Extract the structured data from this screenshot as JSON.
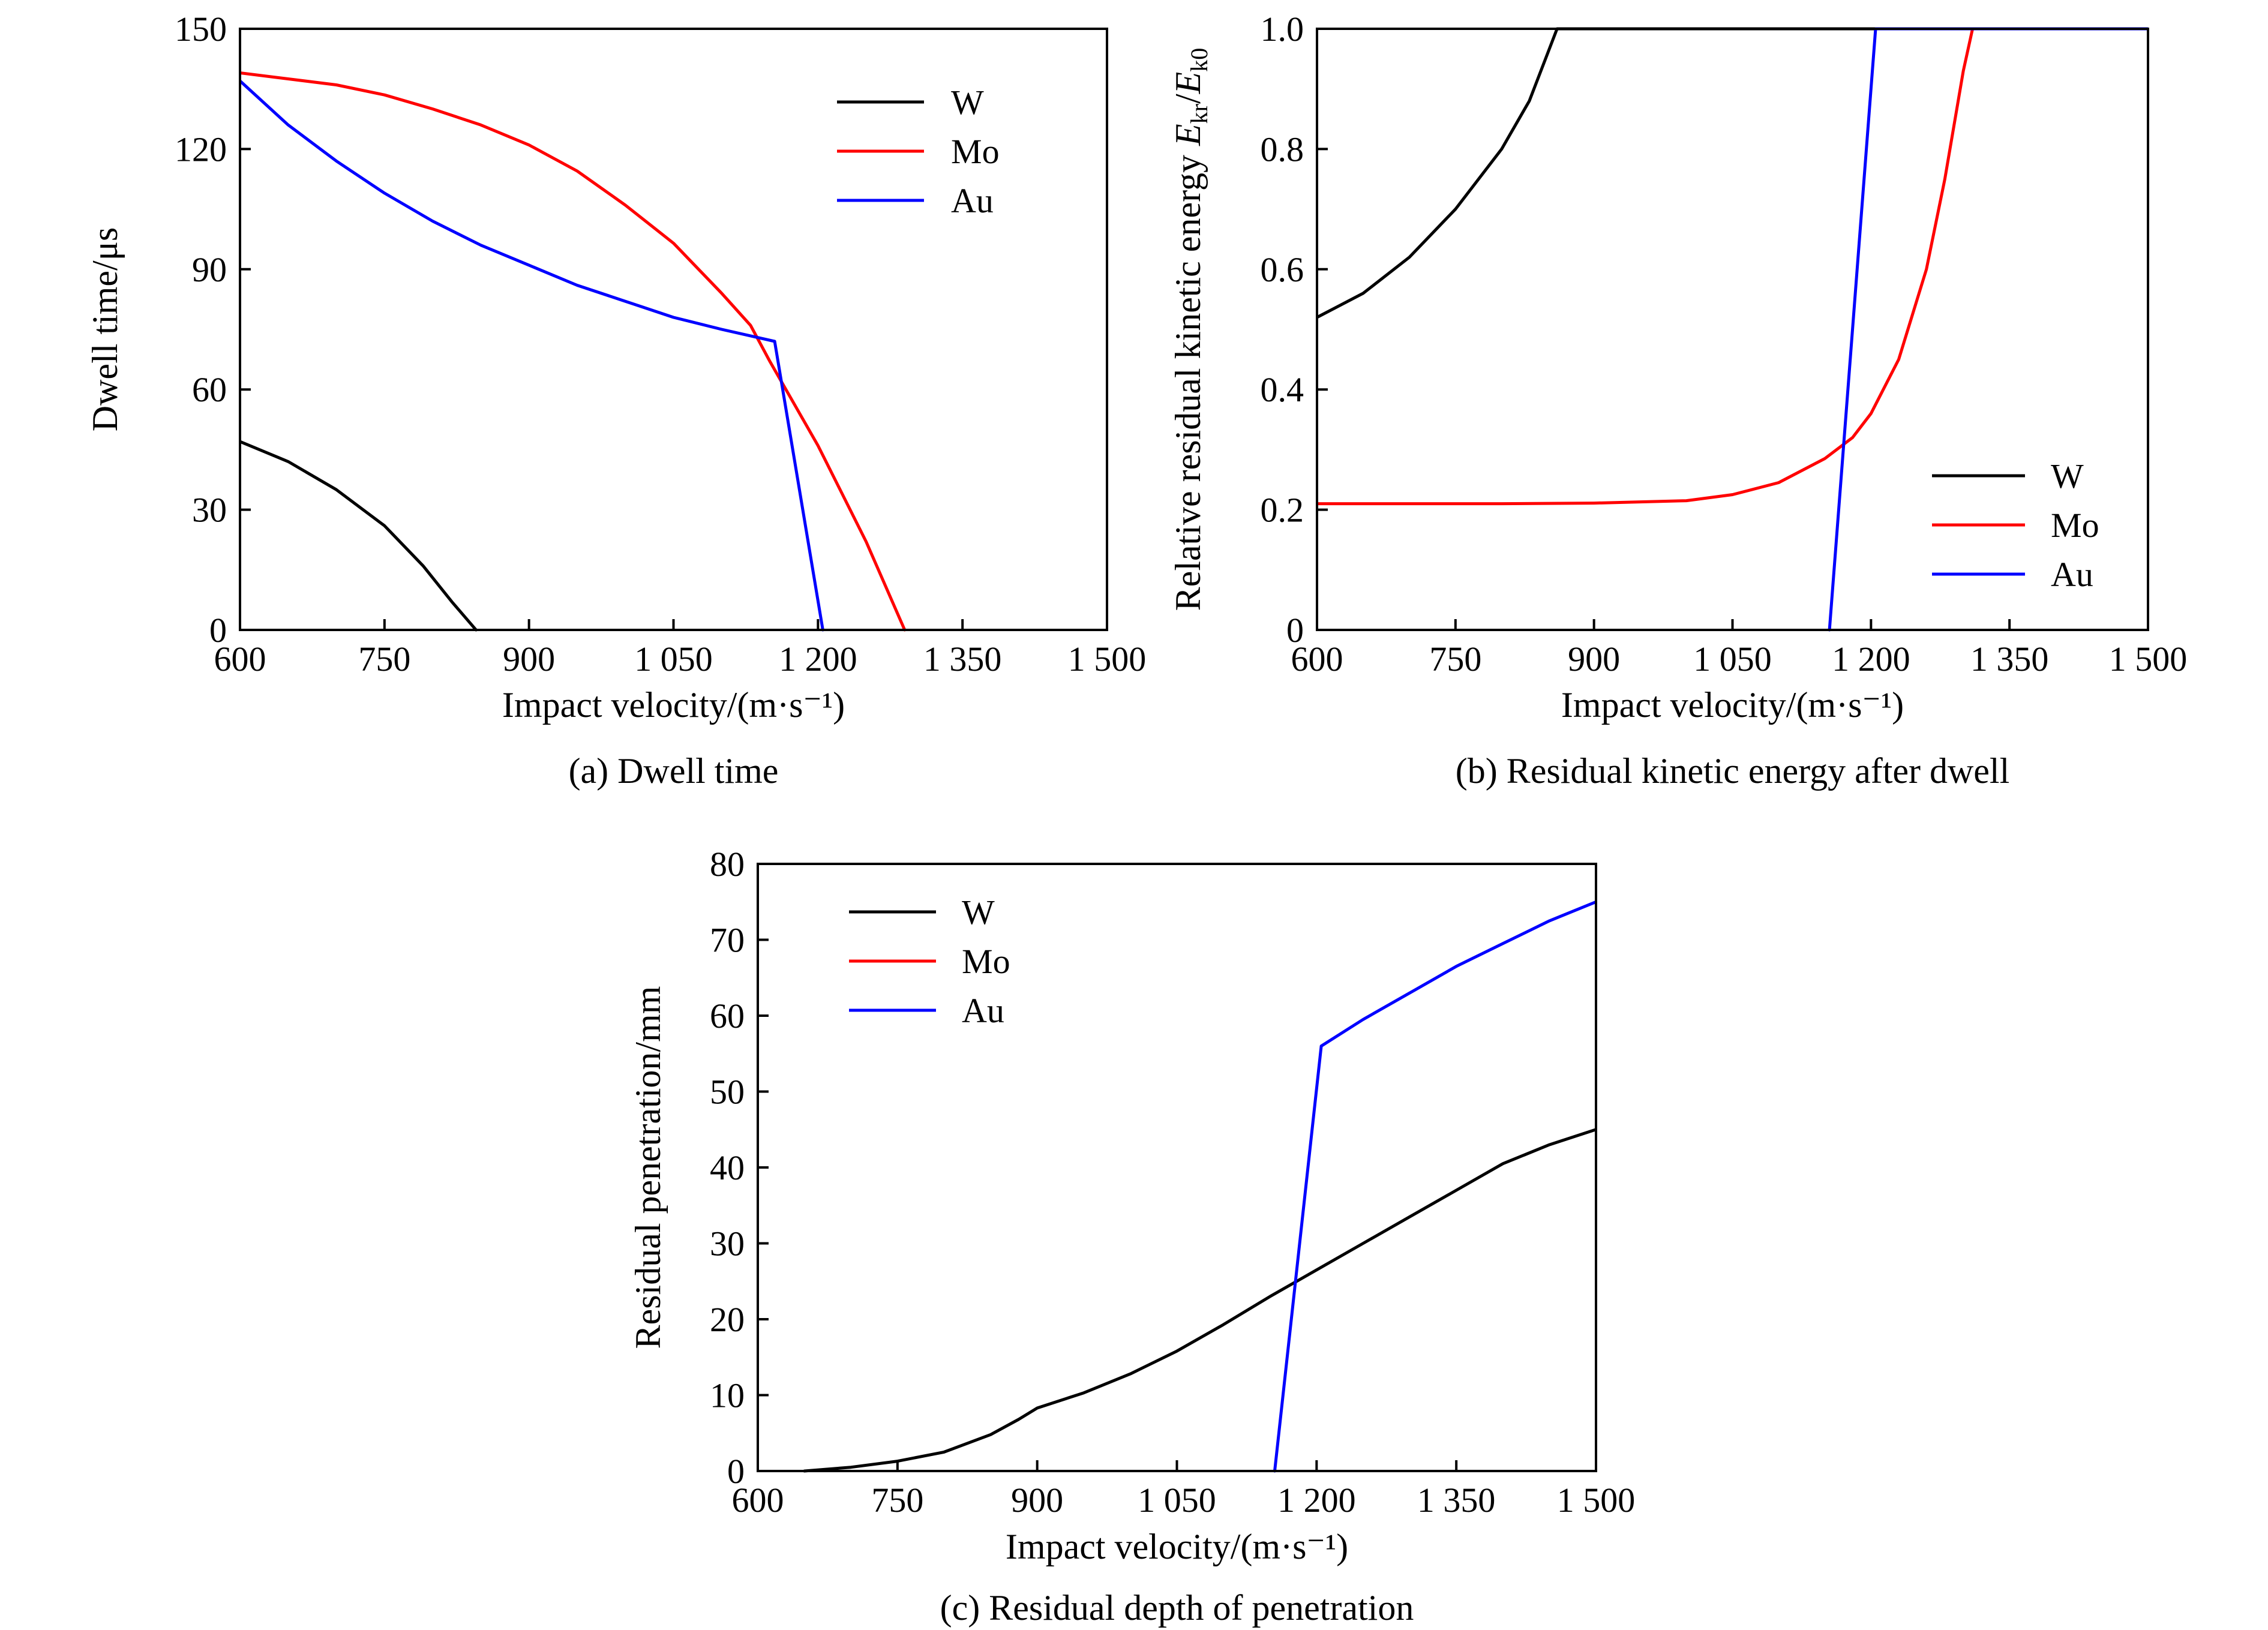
{
  "figure": {
    "charts": [
      {
        "id": "a",
        "caption": "(a) Dwell time",
        "xlabel": "Impact velocity/(m·s⁻¹)",
        "ylabel": "Dwell time/μs"
      },
      {
        "id": "b",
        "caption": "(b) Residual kinetic energy after dwell",
        "xlabel": "Impact velocity/(m·s⁻¹)",
        "ylabel": "Relative residual kinetic energy Ekr/Ek0"
      },
      {
        "id": "c",
        "caption": "(c) Residual depth of penetration",
        "xlabel": "Impact velocity/(m·s⁻¹)",
        "ylabel": "Residual penetration/mm"
      }
    ]
  },
  "chart_data": [
    {
      "type": "line",
      "caption": "(a) Dwell time",
      "xlabel": "Impact velocity/(m·s⁻¹)",
      "ylabel": "Dwell time/μs",
      "xlim": [
        600,
        1500
      ],
      "ylim": [
        0,
        150
      ],
      "xticks": [
        600,
        750,
        900,
        1050,
        1200,
        1350,
        1500
      ],
      "xtick_labels": [
        "600",
        "750",
        "900",
        "1 050",
        "1 200",
        "1 350",
        "1 500"
      ],
      "yticks": [
        0,
        30,
        60,
        90,
        120,
        150
      ],
      "ytick_labels": [
        "0",
        "30",
        "60",
        "90",
        "120",
        "150"
      ],
      "legend_position": "top-right",
      "grid": false,
      "series": [
        {
          "name": "W",
          "color": "#000000",
          "points": [
            [
              600,
              47
            ],
            [
              650,
              42
            ],
            [
              700,
              35
            ],
            [
              750,
              26
            ],
            [
              790,
              16
            ],
            [
              820,
              7
            ],
            [
              845,
              0
            ]
          ]
        },
        {
          "name": "Mo",
          "color": "#ff0000",
          "points": [
            [
              600,
              139
            ],
            [
              650,
              137.5
            ],
            [
              700,
              136
            ],
            [
              750,
              133.5
            ],
            [
              800,
              130
            ],
            [
              850,
              126
            ],
            [
              900,
              121
            ],
            [
              950,
              114.5
            ],
            [
              1000,
              106
            ],
            [
              1050,
              96.5
            ],
            [
              1100,
              84
            ],
            [
              1130,
              76
            ],
            [
              1150,
              67
            ],
            [
              1200,
              46
            ],
            [
              1250,
              22
            ],
            [
              1290,
              0
            ]
          ]
        },
        {
          "name": "Au",
          "color": "#0000ff",
          "points": [
            [
              600,
              137
            ],
            [
              650,
              126
            ],
            [
              700,
              117
            ],
            [
              750,
              109
            ],
            [
              800,
              102
            ],
            [
              850,
              96
            ],
            [
              900,
              91
            ],
            [
              950,
              86
            ],
            [
              1000,
              82
            ],
            [
              1050,
              78
            ],
            [
              1100,
              75
            ],
            [
              1155,
              72
            ],
            [
              1205,
              0
            ]
          ]
        }
      ]
    },
    {
      "type": "line",
      "caption": "(b) Residual kinetic energy after dwell",
      "xlabel": "Impact velocity/(m·s⁻¹)",
      "ylabel": "Relative residual kinetic energy Ekr/Ek0",
      "xlim": [
        600,
        1500
      ],
      "ylim": [
        0,
        1.0
      ],
      "xticks": [
        600,
        750,
        900,
        1050,
        1200,
        1350,
        1500
      ],
      "xtick_labels": [
        "600",
        "750",
        "900",
        "1 050",
        "1 200",
        "1 350",
        "1 500"
      ],
      "yticks": [
        0,
        0.2,
        0.4,
        0.6,
        0.8,
        1.0
      ],
      "ytick_labels": [
        "0",
        "0.2",
        "0.4",
        "0.6",
        "0.8",
        "1.0"
      ],
      "legend_position": "bottom-right",
      "grid": false,
      "series": [
        {
          "name": "W",
          "color": "#000000",
          "points": [
            [
              600,
              0.52
            ],
            [
              650,
              0.56
            ],
            [
              700,
              0.62
            ],
            [
              750,
              0.7
            ],
            [
              800,
              0.8
            ],
            [
              830,
              0.88
            ],
            [
              850,
              0.96
            ],
            [
              860,
              1.0
            ],
            [
              1500,
              1.0
            ]
          ]
        },
        {
          "name": "Mo",
          "color": "#ff0000",
          "points": [
            [
              600,
              0.21
            ],
            [
              800,
              0.21
            ],
            [
              900,
              0.211
            ],
            [
              1000,
              0.215
            ],
            [
              1050,
              0.225
            ],
            [
              1100,
              0.245
            ],
            [
              1150,
              0.285
            ],
            [
              1180,
              0.32
            ],
            [
              1200,
              0.36
            ],
            [
              1230,
              0.45
            ],
            [
              1260,
              0.6
            ],
            [
              1280,
              0.75
            ],
            [
              1300,
              0.93
            ],
            [
              1310,
              1.0
            ],
            [
              1500,
              1.0
            ]
          ]
        },
        {
          "name": "Au",
          "color": "#0000ff",
          "points": [
            [
              1155,
              0
            ],
            [
              1205,
              1.0
            ],
            [
              1500,
              1.0
            ]
          ]
        }
      ]
    },
    {
      "type": "line",
      "caption": "(c) Residual depth of penetration",
      "xlabel": "Impact velocity/(m·s⁻¹)",
      "ylabel": "Residual penetration/mm",
      "xlim": [
        600,
        1500
      ],
      "ylim": [
        0,
        80
      ],
      "xticks": [
        600,
        750,
        900,
        1050,
        1200,
        1350,
        1500
      ],
      "xtick_labels": [
        "600",
        "750",
        "900",
        "1 050",
        "1 200",
        "1 350",
        "1 500"
      ],
      "yticks": [
        0,
        10,
        20,
        30,
        40,
        50,
        60,
        70,
        80
      ],
      "ytick_labels": [
        "0",
        "10",
        "20",
        "30",
        "40",
        "50",
        "60",
        "70",
        "80"
      ],
      "legend_position": "top-left",
      "grid": false,
      "series": [
        {
          "name": "W",
          "color": "#000000",
          "points": [
            [
              650,
              0
            ],
            [
              700,
              0.5
            ],
            [
              750,
              1.3
            ],
            [
              800,
              2.5
            ],
            [
              850,
              4.8
            ],
            [
              880,
              6.8
            ],
            [
              900,
              8.3
            ],
            [
              950,
              10.3
            ],
            [
              1000,
              12.8
            ],
            [
              1050,
              15.8
            ],
            [
              1100,
              19.3
            ],
            [
              1150,
              23
            ],
            [
              1200,
              26.5
            ],
            [
              1250,
              30
            ],
            [
              1300,
              33.5
            ],
            [
              1350,
              37
            ],
            [
              1400,
              40.5
            ],
            [
              1450,
              43
            ],
            [
              1500,
              45
            ]
          ]
        },
        {
          "name": "Au",
          "color": "#0000ff",
          "points": [
            [
              1155,
              0
            ],
            [
              1205,
              56
            ],
            [
              1250,
              59.5
            ],
            [
              1300,
              63
            ],
            [
              1350,
              66.5
            ],
            [
              1400,
              69.5
            ],
            [
              1450,
              72.5
            ],
            [
              1500,
              75
            ]
          ]
        }
      ],
      "legend_entries": [
        {
          "name": "W",
          "color": "#000000"
        },
        {
          "name": "Mo",
          "color": "#ff0000"
        },
        {
          "name": "Au",
          "color": "#0000ff"
        }
      ]
    }
  ]
}
